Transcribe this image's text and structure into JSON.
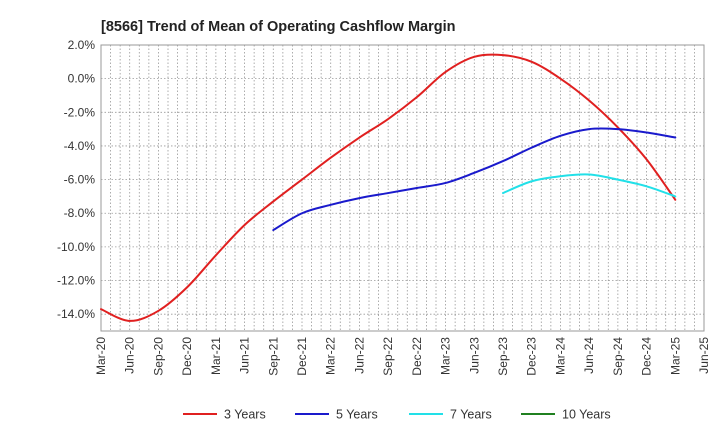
{
  "chart_data": {
    "type": "line",
    "title": "[8566]  Trend of Mean of Operating Cashflow Margin",
    "xlabel": "",
    "ylabel": "",
    "ylim": [
      -15.0,
      2.0
    ],
    "y_ticks": [
      "2.0%",
      "0.0%",
      "-2.0%",
      "-4.0%",
      "-6.0%",
      "-8.0%",
      "-10.0%",
      "-12.0%",
      "-14.0%"
    ],
    "y_tick_values": [
      2,
      0,
      -2,
      -4,
      -6,
      -8,
      -10,
      -12,
      -14
    ],
    "categories": [
      "Mar-20",
      "Jun-20",
      "Sep-20",
      "Dec-20",
      "Mar-21",
      "Jun-21",
      "Sep-21",
      "Dec-21",
      "Mar-22",
      "Jun-22",
      "Sep-22",
      "Dec-22",
      "Mar-23",
      "Jun-23",
      "Sep-23",
      "Dec-23",
      "Mar-24",
      "Jun-24",
      "Sep-24",
      "Dec-24",
      "Mar-25",
      "Jun-25"
    ],
    "grid": true,
    "legend_position": "bottom",
    "series": [
      {
        "name": "3 Years",
        "color": "#e02020",
        "values": [
          -13.7,
          -14.4,
          -13.8,
          -12.4,
          -10.5,
          -8.7,
          -7.3,
          -6.0,
          -4.7,
          -3.5,
          -2.4,
          -1.1,
          0.4,
          1.3,
          1.4,
          1.0,
          0.0,
          -1.3,
          -2.9,
          -4.8,
          -7.2,
          null
        ]
      },
      {
        "name": "5 Years",
        "color": "#1a1acc",
        "values": [
          null,
          null,
          null,
          null,
          null,
          null,
          -9.0,
          -8.0,
          -7.5,
          -7.1,
          -6.8,
          -6.5,
          -6.2,
          -5.6,
          -4.9,
          -4.1,
          -3.4,
          -3.0,
          -3.0,
          -3.2,
          -3.5,
          null
        ]
      },
      {
        "name": "7 Years",
        "color": "#22e0e8",
        "values": [
          null,
          null,
          null,
          null,
          null,
          null,
          null,
          null,
          null,
          null,
          null,
          null,
          null,
          null,
          -6.8,
          -6.1,
          -5.8,
          -5.7,
          -6.0,
          -6.4,
          -7.0,
          null
        ]
      },
      {
        "name": "10 Years",
        "color": "#208020",
        "values": [
          null,
          null,
          null,
          null,
          null,
          null,
          null,
          null,
          null,
          null,
          null,
          null,
          null,
          null,
          null,
          null,
          null,
          null,
          null,
          null,
          null,
          null
        ]
      }
    ]
  }
}
